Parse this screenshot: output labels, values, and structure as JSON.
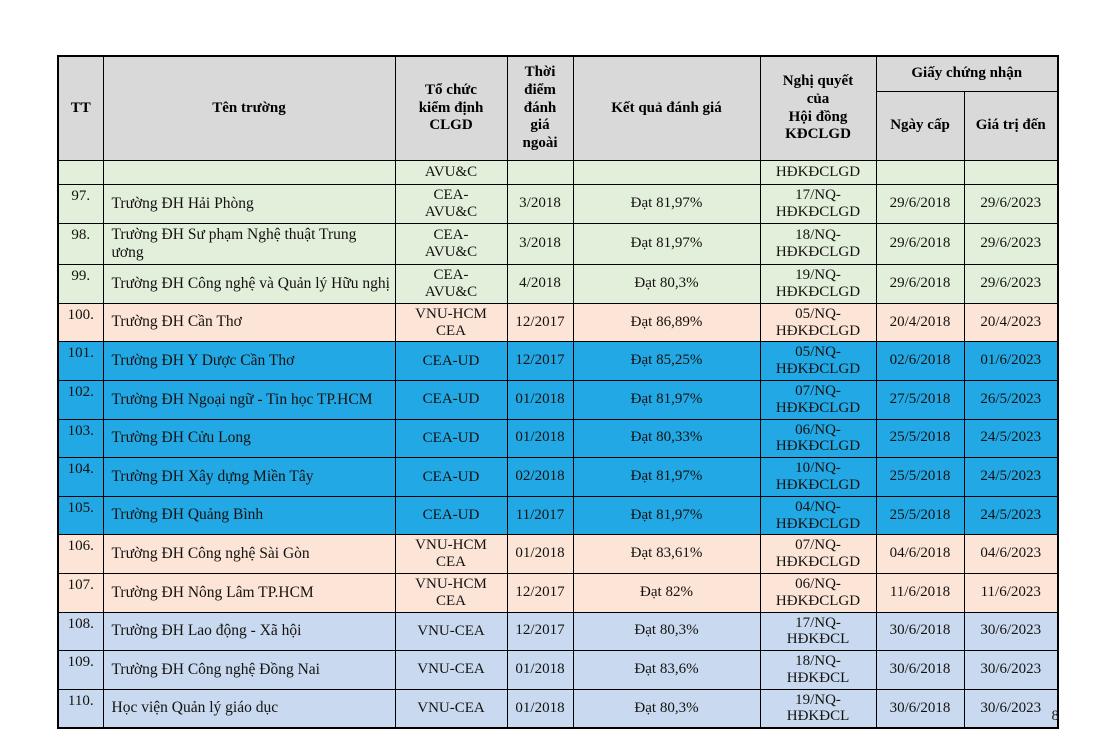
{
  "page": {
    "number": "8"
  },
  "table": {
    "headers": {
      "tt": "TT",
      "name": "Tên trường",
      "org": "Tổ chức\nkiểm định\nCLGD",
      "time": "Thời\nđiểm\nđánh\ngiá\nngoài",
      "result": "Kết quả đánh giá",
      "resolution": "Nghị quyết\ncủa\nHội đồng\nKĐCLGD",
      "certificate": "Giấy chứng nhận",
      "issued": "Ngày cấp",
      "valid": "Giá trị đến"
    },
    "colors": {
      "header_bg": "#D9D9D9",
      "green": "#E2EFDA",
      "peach": "#FCE4D6",
      "cyan": "#22A9E5",
      "lightblue": "#C9DAF0"
    },
    "rows": [
      {
        "tt": "",
        "name": "",
        "org": "AVU&C",
        "time": "",
        "result": "",
        "resolution": "HĐKĐCLGD",
        "issued": "",
        "valid": "",
        "color": "green"
      },
      {
        "tt": "97.",
        "name": "Trường ĐH Hải Phòng",
        "org": "CEA-\nAVU&C",
        "time": "3/2018",
        "result": "Đạt 81,97%",
        "resolution": "17/NQ-\nHĐKĐCLGD",
        "issued": "29/6/2018",
        "valid": "29/6/2023",
        "color": "green"
      },
      {
        "tt": "98.",
        "name": "Trường ĐH Sư phạm Nghệ thuật Trung ương",
        "org": "CEA-\nAVU&C",
        "time": "3/2018",
        "result": "Đạt 81,97%",
        "resolution": "18/NQ-\nHĐKĐCLGD",
        "issued": "29/6/2018",
        "valid": "29/6/2023",
        "color": "green"
      },
      {
        "tt": "99.",
        "name": "Trường ĐH Công nghệ và Quản lý Hữu nghị",
        "org": "CEA-\nAVU&C",
        "time": "4/2018",
        "result": "Đạt 80,3%",
        "resolution": "19/NQ-\nHĐKĐCLGD",
        "issued": "29/6/2018",
        "valid": "29/6/2023",
        "color": "green"
      },
      {
        "tt": "100.",
        "name": "Trường ĐH Cần Thơ",
        "org": "VNU-HCM\nCEA",
        "time": "12/2017",
        "result": "Đạt 86,89%",
        "resolution": "05/NQ-\nHĐKĐCLGD",
        "issued": "20/4/2018",
        "valid": "20/4/2023",
        "color": "peach"
      },
      {
        "tt": "101.",
        "name": "Trường ĐH Y Dược  Cần Thơ",
        "org": "CEA-UD",
        "time": "12/2017",
        "result": "Đạt 85,25%",
        "resolution": "05/NQ-\nHĐKĐCLGD",
        "issued": "02/6/2018",
        "valid": "01/6/2023",
        "color": "cyan"
      },
      {
        "tt": "102.",
        "name": "Trường ĐH Ngoại ngữ - Tin học TP.HCM",
        "org": "CEA-UD",
        "time": "01/2018",
        "result": "Đạt 81,97%",
        "resolution": "07/NQ-\nHĐKĐCLGD",
        "issued": "27/5/2018",
        "valid": "26/5/2023",
        "color": "cyan"
      },
      {
        "tt": "103.",
        "name": "Trường ĐH Cửu Long",
        "org": "CEA-UD",
        "time": "01/2018",
        "result": "Đạt 80,33%",
        "resolution": "06/NQ-\nHĐKĐCLGD",
        "issued": "25/5/2018",
        "valid": "24/5/2023",
        "color": "cyan"
      },
      {
        "tt": "104.",
        "name": "Trường ĐH Xây dựng  Miền Tây",
        "org": "CEA-UD",
        "time": "02/2018",
        "result": "Đạt 81,97%",
        "resolution": "10/NQ-\nHĐKĐCLGD",
        "issued": "25/5/2018",
        "valid": "24/5/2023",
        "color": "cyan"
      },
      {
        "tt": "105.",
        "name": "Trường ĐH Quảng Bình",
        "org": "CEA-UD",
        "time": "11/2017",
        "result": "Đạt 81,97%",
        "resolution": "04/NQ-\nHĐKĐCLGD",
        "issued": "25/5/2018",
        "valid": "24/5/2023",
        "color": "cyan"
      },
      {
        "tt": "106.",
        "name": "Trường ĐH Công nghệ Sài Gòn",
        "org": "VNU-HCM\nCEA",
        "time": "01/2018",
        "result": "Đạt 83,61%",
        "resolution": "07/NQ-\nHĐKĐCLGD",
        "issued": "04/6/2018",
        "valid": "04/6/2023",
        "color": "peach"
      },
      {
        "tt": "107.",
        "name": "Trường ĐH Nông Lâm TP.HCM",
        "org": "VNU-HCM\nCEA",
        "time": "12/2017",
        "result": "Đạt 82%",
        "resolution": "06/NQ-\nHĐKĐCLGD",
        "issued": "11/6/2018",
        "valid": "11/6/2023",
        "color": "peach"
      },
      {
        "tt": "108.",
        "name": "Trường ĐH Lao động - Xã hội",
        "org": "VNU-CEA",
        "time": "12/2017",
        "result": "Đạt 80,3%",
        "resolution": "17/NQ-\nHĐKĐCL",
        "issued": "30/6/2018",
        "valid": "30/6/2023",
        "color": "lightblue"
      },
      {
        "tt": "109.",
        "name": "Trường ĐH Công nghệ Đồng Nai",
        "org": "VNU-CEA",
        "time": "01/2018",
        "result": "Đạt 83,6%",
        "resolution": "18/NQ-\nHĐKĐCL",
        "issued": "30/6/2018",
        "valid": "30/6/2023",
        "color": "lightblue"
      },
      {
        "tt": "110.",
        "name": "Học viện Quản lý giáo dục",
        "org": "VNU-CEA",
        "time": "01/2018",
        "result": "Đạt 80,3%",
        "resolution": "19/NQ-\nHĐKĐCL",
        "issued": "30/6/2018",
        "valid": "30/6/2023",
        "color": "lightblue"
      }
    ]
  }
}
